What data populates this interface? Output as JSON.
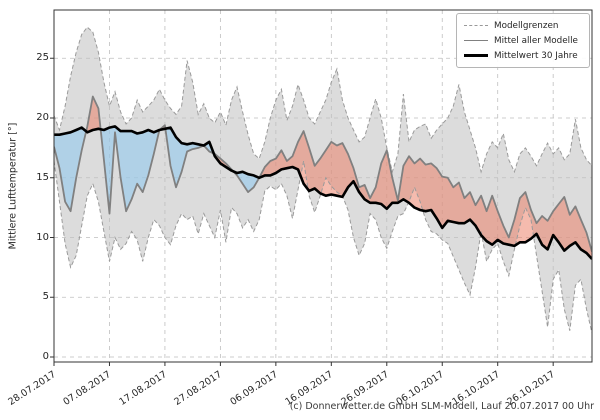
{
  "figure": {
    "footer": "(c) Donnerwetter.de GmbH SLM-Modell, Lauf 20.07.2017 00 Uhr"
  },
  "chart_data": {
    "type": "line",
    "title": "",
    "xlabel": "",
    "ylabel": "Mittlere Lufttemperatur [°]",
    "ylim": [
      -0.4,
      29.1
    ],
    "yticks": [
      0,
      5,
      10,
      15,
      20,
      25
    ],
    "grid": true,
    "x_is_days_from": "28.07.2017",
    "x_days_total": 97,
    "xtick_days": [
      0,
      10,
      20,
      30,
      40,
      50,
      60,
      70,
      80,
      90
    ],
    "xtick_labels": [
      "28.07.2017",
      "07.08.2017",
      "17.08.2017",
      "27.08.2017",
      "06.09.2017",
      "16.09.2017",
      "26.09.2017",
      "06.10.2017",
      "16.10.2017",
      "26.10.2017"
    ],
    "legend": {
      "position": "top-right",
      "entries": [
        {
          "label": "Modellgrenzen",
          "style": "dashed-thin",
          "color": "#999999"
        },
        {
          "label": "Mittel aller Modelle",
          "style": "solid",
          "color": "#808080"
        },
        {
          "label": "Mittelwert 30 Jahre",
          "style": "solid-thick",
          "color": "#000000"
        }
      ]
    },
    "colors": {
      "band_fill": "#dcdcdc",
      "boundary_line": "#9a9a9a",
      "model_mean_line": "#808080",
      "mean30_line": "#000000",
      "fill_above_mean30": "rgba(235,125,100,0.52)",
      "fill_below_mean30": "rgba(140,200,240,0.55)",
      "gridline": "#bfbfbf",
      "spine": "#333333"
    },
    "series": [
      {
        "name": "Modellgrenzen (oben)",
        "values": [
          20.2,
          19.0,
          21.0,
          23.5,
          25.5,
          27.0,
          27.6,
          27.2,
          25.5,
          23.0,
          21.0,
          22.2,
          20.5,
          19.5,
          20.0,
          21.5,
          20.5,
          21.0,
          21.5,
          22.4,
          21.5,
          20.8,
          20.3,
          21.0,
          24.8,
          23.0,
          20.3,
          21.2,
          20.0,
          19.6,
          20.5,
          19.4,
          21.5,
          22.6,
          20.5,
          18.6,
          17.0,
          16.6,
          18.0,
          20.0,
          21.5,
          22.4,
          19.8,
          21.0,
          22.8,
          21.5,
          20.0,
          19.5,
          20.5,
          21.5,
          23.0,
          24.1,
          21.5,
          20.0,
          19.0,
          18.0,
          18.4,
          20.0,
          21.6,
          20.0,
          17.5,
          15.5,
          17.0,
          22.0,
          18.0,
          19.0,
          19.3,
          19.5,
          18.3,
          19.0,
          19.5,
          20.0,
          21.0,
          22.8,
          20.5,
          19.0,
          17.5,
          15.5,
          17.0,
          18.0,
          17.5,
          18.7,
          16.5,
          15.5,
          17.0,
          17.5,
          16.8,
          16.0,
          17.0,
          17.9,
          17.0,
          17.5,
          16.5,
          17.0,
          19.9,
          17.5,
          16.5,
          16.0
        ]
      },
      {
        "name": "Modellgrenzen (unten)",
        "values": [
          16.4,
          13.0,
          9.5,
          7.5,
          8.5,
          11.0,
          13.5,
          14.5,
          13.0,
          10.5,
          8.0,
          10.0,
          9.0,
          9.5,
          10.5,
          9.8,
          8.0,
          10.0,
          11.5,
          11.0,
          10.0,
          9.4,
          11.0,
          12.0,
          11.5,
          11.8,
          10.3,
          12.0,
          11.0,
          10.0,
          12.3,
          9.6,
          12.5,
          12.0,
          10.8,
          11.5,
          10.5,
          11.5,
          13.9,
          14.3,
          14.0,
          14.5,
          13.5,
          11.6,
          14.0,
          16.4,
          13.5,
          12.1,
          13.5,
          15.0,
          14.3,
          13.8,
          13.5,
          12.3,
          10.0,
          8.5,
          9.5,
          12.0,
          11.5,
          10.0,
          9.1,
          10.5,
          11.8,
          12.0,
          13.0,
          14.2,
          13.0,
          11.5,
          10.5,
          10.3,
          9.8,
          9.5,
          8.4,
          7.3,
          6.2,
          5.2,
          7.5,
          10.5,
          8.0,
          9.0,
          9.5,
          8.0,
          6.8,
          9.0,
          11.0,
          12.5,
          11.5,
          8.5,
          5.5,
          2.5,
          6.5,
          7.3,
          4.0,
          2.2,
          6.0,
          6.5,
          4.0,
          2.0
        ]
      },
      {
        "name": "Mittel aller Modelle",
        "values": [
          17.6,
          15.8,
          13.0,
          12.2,
          15.0,
          17.3,
          19.3,
          21.8,
          20.8,
          16.5,
          12.0,
          18.8,
          15.0,
          12.2,
          13.2,
          14.5,
          13.8,
          15.2,
          17.0,
          19.0,
          19.4,
          16.0,
          14.2,
          15.5,
          17.2,
          17.4,
          17.5,
          17.7,
          17.2,
          17.0,
          16.6,
          16.2,
          15.7,
          15.2,
          14.5,
          13.8,
          14.2,
          15.0,
          15.9,
          16.4,
          16.6,
          17.3,
          16.4,
          16.8,
          18.0,
          18.9,
          17.5,
          16.0,
          16.6,
          17.3,
          18.0,
          17.7,
          17.9,
          17.0,
          15.8,
          14.2,
          14.4,
          13.3,
          14.2,
          16.2,
          17.3,
          15.0,
          13.1,
          16.0,
          16.8,
          16.2,
          16.6,
          16.1,
          16.2,
          15.8,
          15.1,
          15.0,
          14.2,
          14.6,
          13.3,
          13.8,
          12.7,
          13.5,
          12.2,
          13.5,
          12.2,
          11.0,
          10.0,
          11.5,
          13.3,
          13.8,
          12.3,
          11.2,
          11.8,
          11.4,
          12.2,
          12.8,
          13.4,
          11.9,
          12.6,
          11.5,
          10.4,
          8.8
        ]
      },
      {
        "name": "Mittelwert 30 Jahre",
        "values": [
          18.6,
          18.6,
          18.7,
          18.8,
          19.0,
          19.2,
          18.8,
          19.0,
          19.1,
          19.0,
          19.2,
          19.3,
          18.9,
          18.9,
          18.9,
          18.7,
          18.8,
          19.0,
          18.8,
          19.0,
          19.1,
          19.2,
          18.4,
          17.9,
          17.8,
          17.9,
          17.8,
          17.7,
          18.0,
          16.8,
          16.2,
          15.9,
          15.6,
          15.4,
          15.5,
          15.3,
          15.2,
          15.0,
          15.2,
          15.2,
          15.4,
          15.7,
          15.8,
          15.9,
          15.7,
          14.5,
          13.9,
          14.1,
          13.7,
          13.5,
          13.6,
          13.5,
          13.4,
          14.2,
          14.7,
          13.8,
          13.2,
          12.9,
          12.9,
          12.8,
          12.4,
          12.9,
          12.9,
          13.2,
          12.9,
          12.5,
          12.3,
          12.2,
          12.3,
          11.6,
          10.8,
          11.4,
          11.3,
          11.2,
          11.2,
          11.5,
          11.0,
          10.2,
          9.7,
          9.4,
          9.8,
          9.5,
          9.4,
          9.3,
          9.6,
          9.6,
          9.9,
          10.3,
          9.4,
          9.0,
          10.2,
          9.6,
          8.9,
          9.3,
          9.6,
          9.0,
          8.7,
          8.2
        ]
      }
    ]
  }
}
